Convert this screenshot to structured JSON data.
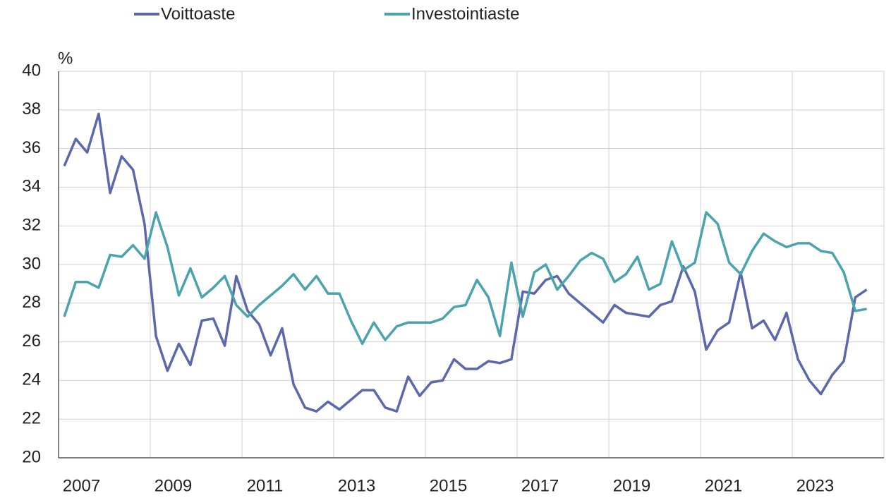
{
  "chart_data": {
    "type": "line",
    "y_unit_label": "%",
    "legend": "top",
    "grid": true,
    "x": [
      2007.125,
      2007.375,
      2007.625,
      2007.875,
      2008.125,
      2008.375,
      2008.625,
      2008.875,
      2009.125,
      2009.375,
      2009.625,
      2009.875,
      2010.125,
      2010.375,
      2010.625,
      2010.875,
      2011.125,
      2011.375,
      2011.625,
      2011.875,
      2012.125,
      2012.375,
      2012.625,
      2012.875,
      2013.125,
      2013.375,
      2013.625,
      2013.875,
      2014.125,
      2014.375,
      2014.625,
      2014.875,
      2015.125,
      2015.375,
      2015.625,
      2015.875,
      2016.125,
      2016.375,
      2016.625,
      2016.875,
      2017.125,
      2017.375,
      2017.625,
      2017.875,
      2018.125,
      2018.375,
      2018.625,
      2018.875,
      2019.125,
      2019.375,
      2019.625,
      2019.875,
      2020.125,
      2020.375,
      2020.625,
      2020.875,
      2021.125,
      2021.375,
      2021.625,
      2021.875,
      2022.125,
      2022.375,
      2022.625,
      2022.875,
      2023.125,
      2023.375,
      2023.625,
      2023.875,
      2024.125,
      2024.375,
      2024.625
    ],
    "series": [
      {
        "name": "Voittoaste",
        "color": "#5b68ab",
        "values": [
          35.1,
          36.5,
          35.8,
          37.8,
          33.7,
          35.6,
          34.9,
          32.1,
          26.3,
          24.5,
          25.9,
          24.8,
          27.1,
          27.2,
          25.8,
          29.4,
          27.6,
          26.9,
          25.3,
          26.7,
          23.8,
          22.6,
          22.4,
          22.9,
          22.5,
          23.0,
          23.5,
          23.5,
          22.6,
          22.4,
          24.2,
          23.2,
          23.9,
          24.0,
          25.1,
          24.6,
          24.6,
          25.0,
          24.9,
          25.1,
          28.6,
          28.5,
          29.2,
          29.4,
          28.5,
          28.0,
          27.5,
          27.0,
          27.9,
          27.5,
          27.4,
          27.3,
          27.9,
          28.1,
          29.9,
          28.6,
          25.6,
          26.6,
          27.0,
          29.6,
          26.7,
          27.1,
          26.1,
          27.5,
          25.1,
          24.0,
          23.3,
          24.3,
          25.0,
          28.3,
          28.7
        ]
      },
      {
        "name": "Investointiaste",
        "color": "#4aa3ad",
        "values": [
          27.3,
          29.1,
          29.1,
          28.8,
          30.5,
          30.4,
          31.0,
          30.3,
          32.7,
          30.9,
          28.4,
          29.8,
          28.3,
          28.8,
          29.4,
          27.9,
          27.3,
          27.9,
          28.4,
          28.9,
          29.5,
          28.7,
          29.4,
          28.5,
          28.5,
          27.1,
          25.9,
          27.0,
          26.1,
          26.8,
          27.0,
          27.0,
          27.0,
          27.2,
          27.8,
          27.9,
          29.2,
          28.3,
          26.3,
          30.1,
          27.3,
          29.6,
          30.0,
          28.7,
          29.4,
          30.2,
          30.6,
          30.3,
          29.1,
          29.5,
          30.4,
          28.7,
          29.0,
          31.2,
          29.7,
          30.1,
          32.7,
          32.1,
          30.1,
          29.5,
          30.7,
          31.6,
          31.2,
          30.9,
          31.1,
          31.1,
          30.7,
          30.6,
          29.6,
          27.6,
          27.7
        ]
      }
    ],
    "xlim": [
      2007,
      2025
    ],
    "xticks": [
      {
        "value": 2007.5,
        "label": "2007"
      },
      {
        "value": 2009.5,
        "label": "2009"
      },
      {
        "value": 2011.5,
        "label": "2011"
      },
      {
        "value": 2013.5,
        "label": "2013"
      },
      {
        "value": 2015.5,
        "label": "2015"
      },
      {
        "value": 2017.5,
        "label": "2017"
      },
      {
        "value": 2019.5,
        "label": "2019"
      },
      {
        "value": 2021.5,
        "label": "2021"
      },
      {
        "value": 2023.5,
        "label": "2023"
      }
    ],
    "x_gridlines": [
      2009,
      2011,
      2013,
      2015,
      2017,
      2019,
      2021,
      2023,
      2025
    ],
    "ylim": [
      20,
      40
    ],
    "yticks": [
      20,
      22,
      24,
      26,
      28,
      30,
      32,
      34,
      36,
      38,
      40
    ]
  }
}
